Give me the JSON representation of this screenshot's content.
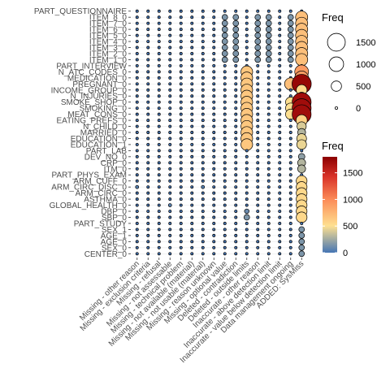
{
  "chart_data": {
    "type": "scatter",
    "title": "",
    "xlabel": "",
    "ylabel": "",
    "x_categories": [
      "Missing - other reason",
      "Missing - exclusion criteria",
      "Missing - refusal",
      "Missing - not assessable",
      "Missing - technical problem",
      "Missing - not available (material)",
      "Missing - not usable (material)",
      "Missing - reason unknown",
      "Missing - optional value",
      "Deleted - contradiction",
      "Deleted - outside limits",
      "Inaccurate - other reason",
      "Inaccurate - above detection limit",
      "Inaccurate - value below detection limit",
      "Data management ongoing",
      "ADDED: SysMiss"
    ],
    "y_categories": [
      "PART_QUESTIONNAIRE",
      "ITEM_8_0",
      "ITEM_7_0",
      "ITEM_6_0",
      "ITEM_5_0",
      "ITEM_4_0",
      "ITEM_3_0",
      "ITEM_2_0",
      "ITEM_1_0",
      "PART_INTERVIEW",
      "N_ATC_CODES_0",
      "MEDICATION_0",
      "PREGNANT_0",
      "INCOME_GROUP_0",
      "N_INJURIES_0",
      "SMOKE_SHOP_0",
      "SMOKING_0",
      "MEAT_CONS_0",
      "EATING_PREFS_0",
      "N_CHILD_0",
      "MARRIED_0",
      "EDUCATION_0",
      "EDUCATION_1",
      "PART_LAB",
      "DEV_NO_0",
      "CRP_0",
      "ITM_0",
      "PART_PHYS_EXAM",
      "ARM_CUFF_0",
      "ARM_CIRC_DISC_0",
      "ARM_CIRC_0",
      "ASTHMA_0",
      "GLOBAL_HEALTH_0",
      "DBP_0",
      "SBP_0",
      "PART_STUDY",
      "SEX_1",
      "AGE_1",
      "AGE_0",
      "SEX_0",
      "CENTER_0"
    ],
    "points_note": "",
    "points": [
      {
        "x": "Missing - optional value",
        "y": "ITEM_8_0",
        "freq": 150
      },
      {
        "x": "Missing - optional value",
        "y": "ITEM_7_0",
        "freq": 150
      },
      {
        "x": "Missing - optional value",
        "y": "ITEM_6_0",
        "freq": 150
      },
      {
        "x": "Missing - optional value",
        "y": "ITEM_5_0",
        "freq": 150
      },
      {
        "x": "Missing - optional value",
        "y": "ITEM_4_0",
        "freq": 150
      },
      {
        "x": "Missing - optional value",
        "y": "ITEM_3_0",
        "freq": 150
      },
      {
        "x": "Missing - optional value",
        "y": "ITEM_2_0",
        "freq": 150
      },
      {
        "x": "Missing - optional value",
        "y": "ITEM_1_0",
        "freq": 150
      },
      {
        "x": "Deleted - contradiction",
        "y": "ITEM_8_0",
        "freq": 150
      },
      {
        "x": "Deleted - contradiction",
        "y": "ITEM_7_0",
        "freq": 150
      },
      {
        "x": "Deleted - contradiction",
        "y": "ITEM_6_0",
        "freq": 150
      },
      {
        "x": "Deleted - contradiction",
        "y": "ITEM_5_0",
        "freq": 150
      },
      {
        "x": "Deleted - contradiction",
        "y": "ITEM_4_0",
        "freq": 150
      },
      {
        "x": "Deleted - contradiction",
        "y": "ITEM_3_0",
        "freq": 150
      },
      {
        "x": "Deleted - contradiction",
        "y": "ITEM_2_0",
        "freq": 150
      },
      {
        "x": "Deleted - contradiction",
        "y": "ITEM_1_0",
        "freq": 150
      },
      {
        "x": "Inaccurate - other reason",
        "y": "ITEM_8_0",
        "freq": 150
      },
      {
        "x": "Inaccurate - other reason",
        "y": "ITEM_7_0",
        "freq": 150
      },
      {
        "x": "Inaccurate - other reason",
        "y": "ITEM_6_0",
        "freq": 150
      },
      {
        "x": "Inaccurate - other reason",
        "y": "ITEM_5_0",
        "freq": 150
      },
      {
        "x": "Inaccurate - other reason",
        "y": "ITEM_4_0",
        "freq": 150
      },
      {
        "x": "Inaccurate - other reason",
        "y": "ITEM_3_0",
        "freq": 150
      },
      {
        "x": "Inaccurate - other reason",
        "y": "ITEM_2_0",
        "freq": 150
      },
      {
        "x": "Inaccurate - other reason",
        "y": "ITEM_1_0",
        "freq": 150
      },
      {
        "x": "Inaccurate - above detection limit",
        "y": "ITEM_8_0",
        "freq": 150
      },
      {
        "x": "Inaccurate - above detection limit",
        "y": "ITEM_7_0",
        "freq": 150
      },
      {
        "x": "Inaccurate - above detection limit",
        "y": "ITEM_6_0",
        "freq": 150
      },
      {
        "x": "Inaccurate - above detection limit",
        "y": "ITEM_5_0",
        "freq": 150
      },
      {
        "x": "Inaccurate - above detection limit",
        "y": "ITEM_4_0",
        "freq": 150
      },
      {
        "x": "Inaccurate - above detection limit",
        "y": "ITEM_3_0",
        "freq": 150
      },
      {
        "x": "Inaccurate - above detection limit",
        "y": "ITEM_2_0",
        "freq": 150
      },
      {
        "x": "Inaccurate - above detection limit",
        "y": "ITEM_1_0",
        "freq": 150
      },
      {
        "x": "Data management ongoing",
        "y": "ITEM_8_0",
        "freq": 150
      },
      {
        "x": "Data management ongoing",
        "y": "ITEM_7_0",
        "freq": 150
      },
      {
        "x": "Data management ongoing",
        "y": "ITEM_6_0",
        "freq": 150
      },
      {
        "x": "Data management ongoing",
        "y": "ITEM_5_0",
        "freq": 150
      },
      {
        "x": "Data management ongoing",
        "y": "ITEM_4_0",
        "freq": 150
      },
      {
        "x": "Data management ongoing",
        "y": "ITEM_3_0",
        "freq": 150
      },
      {
        "x": "Data management ongoing",
        "y": "ITEM_2_0",
        "freq": 150
      },
      {
        "x": "Data management ongoing",
        "y": "ITEM_1_0",
        "freq": 150
      },
      {
        "x": "ADDED: SysMiss",
        "y": "ITEM_8_0",
        "freq": 700
      },
      {
        "x": "ADDED: SysMiss",
        "y": "ITEM_7_0",
        "freq": 700
      },
      {
        "x": "ADDED: SysMiss",
        "y": "ITEM_6_0",
        "freq": 700
      },
      {
        "x": "ADDED: SysMiss",
        "y": "ITEM_5_0",
        "freq": 700
      },
      {
        "x": "ADDED: SysMiss",
        "y": "ITEM_4_0",
        "freq": 700
      },
      {
        "x": "ADDED: SysMiss",
        "y": "ITEM_3_0",
        "freq": 700
      },
      {
        "x": "ADDED: SysMiss",
        "y": "ITEM_2_0",
        "freq": 700
      },
      {
        "x": "ADDED: SysMiss",
        "y": "ITEM_1_0",
        "freq": 700
      },
      {
        "x": "Deleted - outside limits",
        "y": "N_ATC_CODES_0",
        "freq": 650
      },
      {
        "x": "Deleted - outside limits",
        "y": "MEDICATION_0",
        "freq": 650
      },
      {
        "x": "Deleted - outside limits",
        "y": "PREGNANT_0",
        "freq": 650
      },
      {
        "x": "Deleted - outside limits",
        "y": "INCOME_GROUP_0",
        "freq": 650
      },
      {
        "x": "Deleted - outside limits",
        "y": "N_INJURIES_0",
        "freq": 650
      },
      {
        "x": "Deleted - outside limits",
        "y": "SMOKE_SHOP_0",
        "freq": 650
      },
      {
        "x": "Deleted - outside limits",
        "y": "SMOKING_0",
        "freq": 650
      },
      {
        "x": "Deleted - outside limits",
        "y": "MEAT_CONS_0",
        "freq": 650
      },
      {
        "x": "Deleted - outside limits",
        "y": "EATING_PREFS_0",
        "freq": 650
      },
      {
        "x": "Deleted - outside limits",
        "y": "N_CHILD_0",
        "freq": 650
      },
      {
        "x": "Deleted - outside limits",
        "y": "MARRIED_0",
        "freq": 650
      },
      {
        "x": "Deleted - outside limits",
        "y": "EDUCATION_0",
        "freq": 650
      },
      {
        "x": "Deleted - outside limits",
        "y": "EDUCATION_1",
        "freq": 650
      },
      {
        "x": "ADDED: SysMiss",
        "y": "N_ATC_CODES_0",
        "freq": 900
      },
      {
        "x": "ADDED: SysMiss",
        "y": "MEDICATION_0",
        "freq": 900
      },
      {
        "x": "ADDED: SysMiss",
        "y": "PREGNANT_0",
        "freq": 1750
      },
      {
        "x": "ADDED: SysMiss",
        "y": "INCOME_GROUP_0",
        "freq": 550
      },
      {
        "x": "ADDED: SysMiss",
        "y": "N_INJURIES_0",
        "freq": 300
      },
      {
        "x": "ADDED: SysMiss",
        "y": "SMOKE_SHOP_0",
        "freq": 1700
      },
      {
        "x": "ADDED: SysMiss",
        "y": "SMOKING_0",
        "freq": 1700
      },
      {
        "x": "ADDED: SysMiss",
        "y": "MEAT_CONS_0",
        "freq": 1700
      },
      {
        "x": "ADDED: SysMiss",
        "y": "EATING_PREFS_0",
        "freq": 600
      },
      {
        "x": "ADDED: SysMiss",
        "y": "N_CHILD_0",
        "freq": 400
      },
      {
        "x": "ADDED: SysMiss",
        "y": "MARRIED_0",
        "freq": 300
      },
      {
        "x": "ADDED: SysMiss",
        "y": "EDUCATION_0",
        "freq": 450
      },
      {
        "x": "ADDED: SysMiss",
        "y": "EDUCATION_1",
        "freq": 450
      },
      {
        "x": "Data management ongoing",
        "y": "PREGNANT_0",
        "freq": 700
      },
      {
        "x": "Data management ongoing",
        "y": "SMOKE_SHOP_0",
        "freq": 500
      },
      {
        "x": "Data management ongoing",
        "y": "SMOKING_0",
        "freq": 500
      },
      {
        "x": "Data management ongoing",
        "y": "MEAT_CONS_0",
        "freq": 500
      },
      {
        "x": "ADDED: SysMiss",
        "y": "DEV_NO_0",
        "freq": 200
      },
      {
        "x": "ADDED: SysMiss",
        "y": "CRP_0",
        "freq": 300
      },
      {
        "x": "ADDED: SysMiss",
        "y": "ITM_0",
        "freq": 300
      },
      {
        "x": "ADDED: SysMiss",
        "y": "ARM_CUFF_0",
        "freq": 550
      },
      {
        "x": "ADDED: SysMiss",
        "y": "ARM_CIRC_DISC_0",
        "freq": 550
      },
      {
        "x": "ADDED: SysMiss",
        "y": "ARM_CIRC_0",
        "freq": 550
      },
      {
        "x": "ADDED: SysMiss",
        "y": "ASTHMA_0",
        "freq": 550
      },
      {
        "x": "ADDED: SysMiss",
        "y": "GLOBAL_HEALTH_0",
        "freq": 550
      },
      {
        "x": "ADDED: SysMiss",
        "y": "DBP_0",
        "freq": 550
      },
      {
        "x": "ADDED: SysMiss",
        "y": "SBP_0",
        "freq": 550
      },
      {
        "x": "ADDED: SysMiss",
        "y": "SEX_1",
        "freq": 150
      },
      {
        "x": "ADDED: SysMiss",
        "y": "AGE_1",
        "freq": 150
      },
      {
        "x": "ADDED: SysMiss",
        "y": "AGE_0",
        "freq": 150
      },
      {
        "x": "ADDED: SysMiss",
        "y": "SEX_0",
        "freq": 150
      },
      {
        "x": "ADDED: SysMiss",
        "y": "CENTER_0",
        "freq": 150
      },
      {
        "x": "Deleted - outside limits",
        "y": "SBP_0",
        "freq": 150
      },
      {
        "x": "Deleted - outside limits",
        "y": "DBP_0",
        "freq": 100
      },
      {
        "x": "Missing - other reason",
        "y": "ARM_CIRC_DISC_0",
        "freq": 50
      },
      {
        "x": "Missing - not assessable",
        "y": "GLOBAL_HEALTH_0",
        "freq": 50
      },
      {
        "x": "Missing - not usable (material)",
        "y": "ARM_CIRC_DISC_0",
        "freq": 50
      }
    ],
    "size_legend": {
      "title": "Freq",
      "values": [
        1500,
        1000,
        500,
        0
      ]
    },
    "color_legend": {
      "title": "Freq",
      "ticks": [
        1500,
        1000,
        500,
        0
      ],
      "range": [
        0,
        1800
      ]
    },
    "legend_placement": "right",
    "grid": true
  }
}
